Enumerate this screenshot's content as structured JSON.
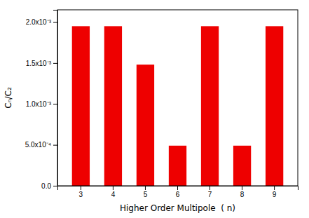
{
  "chart_data": {
    "type": "bar",
    "categories": [
      "3",
      "4",
      "5",
      "6",
      "7",
      "8",
      "9"
    ],
    "values": [
      0.00195,
      0.00195,
      0.00148,
      0.00049,
      0.00195,
      0.00049,
      0.00195
    ],
    "color": "#ee0000",
    "xlabel": "Higher Order Multipole  ( n)",
    "ylabel": "Cₙ/C₂",
    "ylim": [
      0,
      0.00215
    ],
    "yticks": [
      {
        "value": 0.0,
        "label": "0.0"
      },
      {
        "value": 0.0005,
        "label": "5.0x10⁻⁴"
      },
      {
        "value": 0.001,
        "label": "1.0x10⁻³"
      },
      {
        "value": 0.0015,
        "label": "1.5x10⁻³"
      },
      {
        "value": 0.002,
        "label": "2.0x10⁻³"
      }
    ],
    "grid": false
  }
}
